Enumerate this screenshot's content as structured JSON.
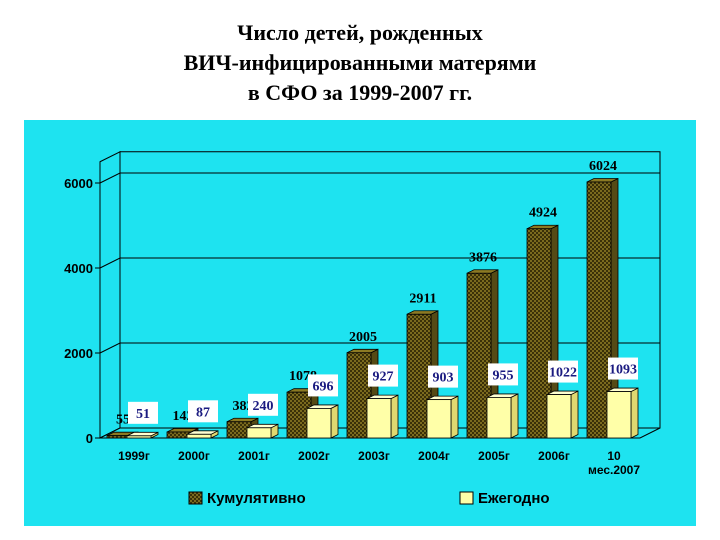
{
  "title_lines": [
    "Число детей, рожденных",
    "ВИЧ-инфицированными матерями",
    "в СФО за 1999-2007 гг."
  ],
  "colors": {
    "panel_background": "#1EE3F0",
    "cumulative_series": "#7A6A1E",
    "annual_series": "#FFFFA8",
    "label_box": "#FFFFFF",
    "label_text_annual": "#1A1A80"
  },
  "chart_data": {
    "type": "bar",
    "categories": [
      "1999г",
      "2000г",
      "2001г",
      "2002г",
      "2003г",
      "2004г",
      "2005г",
      "2006г",
      "10 мес.2007"
    ],
    "series": [
      {
        "name": "Кумулятивно",
        "values": [
          55,
          142,
          382,
          1078,
          2005,
          2911,
          3876,
          4924,
          6024
        ]
      },
      {
        "name": "Ежегодно",
        "values": [
          51,
          87,
          240,
          696,
          927,
          903,
          955,
          1022,
          1093
        ]
      }
    ],
    "yticks": [
      0,
      2000,
      4000,
      6000
    ],
    "ylim": [
      0,
      6500
    ],
    "grid": true,
    "legend_position": "bottom"
  }
}
